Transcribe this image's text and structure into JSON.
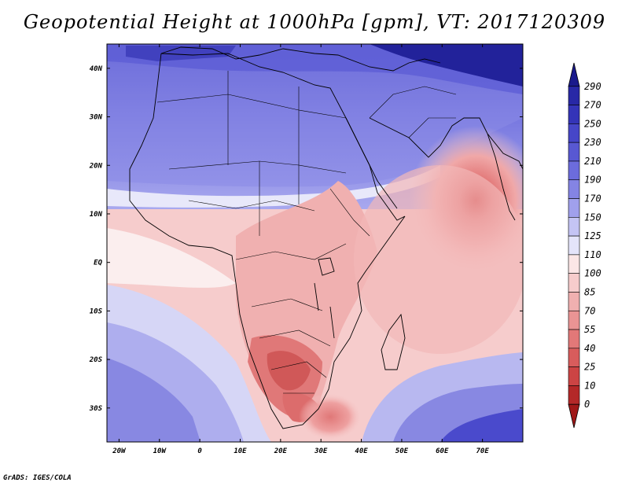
{
  "title": "Geopotential Height at 1000hPa [gpm], VT: 2017120309",
  "credit": "GrADS: IGES/COLA",
  "axes": {
    "x_ticks": [
      "20W",
      "10W",
      "0",
      "10E",
      "20E",
      "30E",
      "40E",
      "50E",
      "60E",
      "70E"
    ],
    "y_ticks": [
      "40N",
      "30N",
      "20N",
      "10N",
      "EQ",
      "10S",
      "20S",
      "30S"
    ]
  },
  "colorbar": {
    "labels": [
      "290",
      "270",
      "250",
      "230",
      "210",
      "190",
      "170",
      "150",
      "125",
      "110",
      "100",
      "85",
      "70",
      "55",
      "40",
      "25",
      "10",
      "0"
    ],
    "colors": [
      "#1a1a8c",
      "#2828a6",
      "#3434b8",
      "#4646c8",
      "#5858d2",
      "#6c6cdc",
      "#8484e4",
      "#a0a0ec",
      "#c4c4f4",
      "#e4e4fa",
      "#fbe6e6",
      "#f6cccc",
      "#f0b0b0",
      "#ea9494",
      "#e27878",
      "#d85c5c",
      "#cc4444",
      "#b42828",
      "#a01818"
    ]
  },
  "chart_data": {
    "type": "heatmap",
    "title": "Geopotential Height at 1000hPa [gpm], VT: 2017120309",
    "variable": "Geopotential Height at 1000hPa",
    "units": "gpm",
    "valid_time": "2017120309",
    "lon_range": [
      -23,
      80
    ],
    "lat_range": [
      -37,
      45
    ],
    "levels": [
      0,
      10,
      25,
      40,
      55,
      70,
      85,
      100,
      110,
      125,
      150,
      170,
      190,
      210,
      230,
      250,
      270,
      290
    ]
  }
}
